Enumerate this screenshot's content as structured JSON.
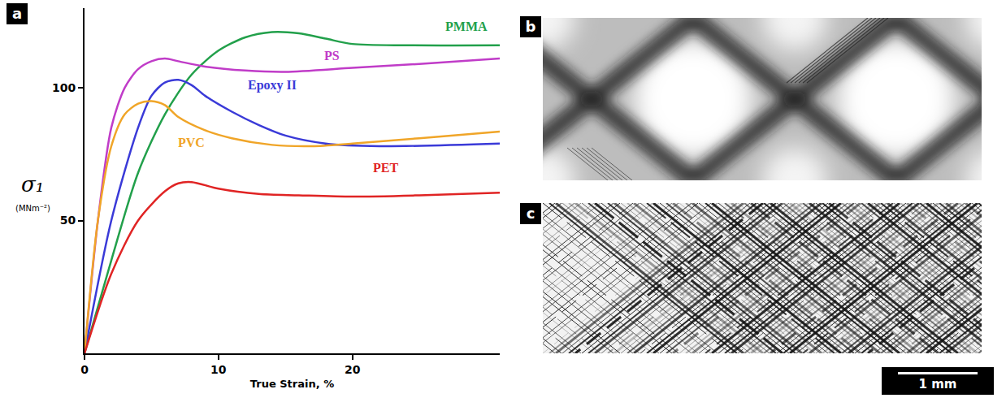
{
  "chart_data": {
    "type": "line",
    "panel_label": "a",
    "x_label": "True Strain, %",
    "y_label": "σ₁",
    "y_unit": "(MNm⁻²)",
    "xlim": [
      0,
      31
    ],
    "xticks": [
      0,
      10,
      20
    ],
    "ylim": [
      0,
      130
    ],
    "yticks": [
      50,
      100
    ],
    "grid": false,
    "series": [
      {
        "name": "PMMA",
        "color": "#22a04b",
        "x": [
          0,
          2,
          4,
          6,
          8,
          10,
          12,
          14,
          16,
          18,
          20,
          24,
          31
        ],
        "values": [
          0,
          35,
          68,
          90,
          105,
          114,
          119,
          121,
          120.5,
          118.5,
          116.5,
          116,
          116
        ]
      },
      {
        "name": "PS",
        "color": "#c03cc8",
        "x": [
          0,
          1,
          2,
          3,
          4,
          5,
          6,
          7,
          9,
          12,
          15,
          20,
          25,
          31
        ],
        "values": [
          0,
          50,
          85,
          100,
          107,
          110,
          111,
          110,
          108,
          106.5,
          106,
          107.5,
          109,
          111
        ]
      },
      {
        "name": "Epoxy II",
        "color": "#3a3ad8",
        "x": [
          0,
          2,
          4,
          5,
          6,
          7,
          8,
          9,
          11,
          13,
          15,
          18,
          22,
          31
        ],
        "values": [
          0,
          50,
          85,
          97,
          102,
          103,
          101,
          97,
          91,
          86,
          82,
          79,
          78,
          79
        ]
      },
      {
        "name": "PVC",
        "color": "#f0a528",
        "x": [
          0,
          1,
          2,
          3,
          4,
          5,
          6,
          7,
          9,
          11,
          14,
          17,
          20,
          25,
          31
        ],
        "values": [
          0,
          50,
          78,
          90,
          94,
          95,
          93.5,
          89,
          84,
          81,
          78.5,
          78,
          79,
          81,
          83.5
        ]
      },
      {
        "name": "PET",
        "color": "#e02424",
        "x": [
          0,
          2,
          4,
          6,
          7,
          8,
          10,
          13,
          16,
          20,
          25,
          31
        ],
        "values": [
          0,
          30,
          50,
          61,
          64,
          64.5,
          62,
          60,
          59.5,
          59,
          59.5,
          60.5
        ]
      }
    ]
  },
  "images": [
    {
      "panel_label": "b"
    },
    {
      "panel_label": "c"
    }
  ],
  "scale_bar": {
    "label": "1 mm"
  }
}
